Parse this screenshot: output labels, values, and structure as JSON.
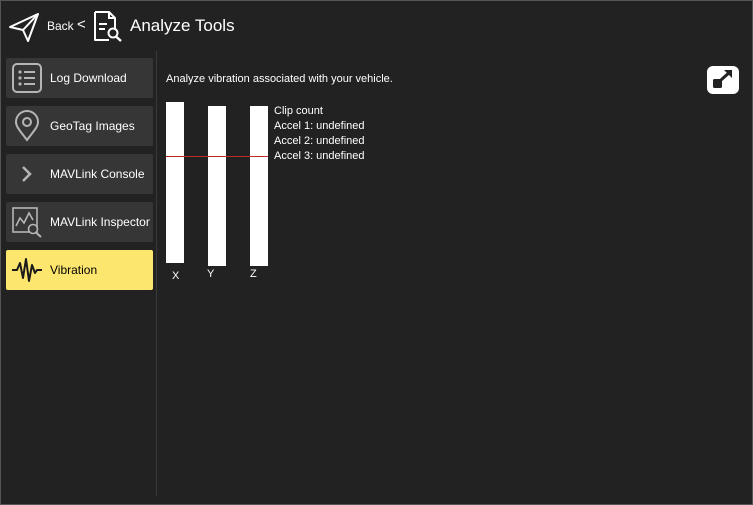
{
  "header": {
    "back_label": "Back",
    "separator": "<",
    "title": "Analyze Tools"
  },
  "sidebar": {
    "items": [
      {
        "label": "Log Download",
        "icon": "list-icon"
      },
      {
        "label": "GeoTag Images",
        "icon": "map-pin-icon"
      },
      {
        "label": "MAVLink Console",
        "icon": "chevron-right-icon"
      },
      {
        "label": "MAVLink Inspector",
        "icon": "chart-inspect-icon"
      },
      {
        "label": "Vibration",
        "icon": "waveform-icon",
        "selected": true
      }
    ]
  },
  "vibration": {
    "description": "Analyze vibration associated with your vehicle.",
    "bars": [
      {
        "label": "X",
        "threshold_fraction": 0.33
      },
      {
        "label": "Y",
        "threshold_fraction": 0.33
      },
      {
        "label": "Z",
        "threshold_fraction": 0.33
      }
    ],
    "clip_count_title": "Clip count",
    "accel_lines": [
      "Accel 1: undefined",
      "Accel 2: undefined",
      "Accel 3: undefined"
    ]
  },
  "colors": {
    "background": "#222222",
    "panel_button": "#363636",
    "selected": "#fce66e",
    "threshold_line": "#c0282e"
  }
}
